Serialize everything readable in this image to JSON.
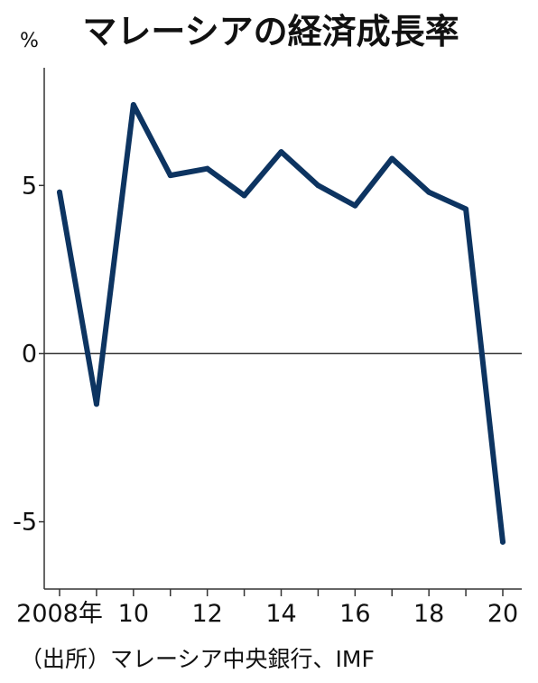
{
  "chart_data": {
    "type": "line",
    "title": "マレーシアの経済成長率",
    "unit_label": "%",
    "source": "（出所）マレーシア中央銀行、IMF",
    "x": [
      2008,
      2009,
      2010,
      2011,
      2012,
      2013,
      2014,
      2015,
      2016,
      2017,
      2018,
      2019,
      2020
    ],
    "series": [
      {
        "values": [
          4.8,
          -1.5,
          7.4,
          5.3,
          5.5,
          4.7,
          6.0,
          5.0,
          4.4,
          5.8,
          4.8,
          4.3,
          -5.6
        ]
      }
    ],
    "x_tick_labels": [
      {
        "x": 2008,
        "label": "2008年"
      },
      {
        "x": 2010,
        "label": "10"
      },
      {
        "x": 2012,
        "label": "12"
      },
      {
        "x": 2014,
        "label": "14"
      },
      {
        "x": 2016,
        "label": "16"
      },
      {
        "x": 2018,
        "label": "18"
      },
      {
        "x": 2020,
        "label": "20"
      }
    ],
    "y_ticks": [
      {
        "value": 5,
        "label": "5"
      },
      {
        "value": 0,
        "label": "0"
      },
      {
        "value": -5,
        "label": "-5"
      }
    ],
    "xlim": [
      2008,
      2020
    ],
    "ylim": [
      -7,
      8.5
    ],
    "grid": false,
    "zero_line": true,
    "line_color": "#0d3461"
  }
}
